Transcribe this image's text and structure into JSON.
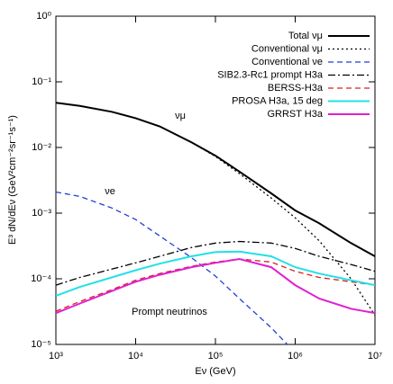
{
  "chart_data": {
    "type": "line",
    "x_label": "Eν (GeV)",
    "y_label": "E³ dN/dEν (GeV²cm⁻²sr⁻¹s⁻¹)",
    "annotations": [
      "νμ",
      "νe",
      "Prompt neutrinos"
    ],
    "log_x": true,
    "log_y": true,
    "grid": false,
    "legend": "upper right",
    "x": [
      1000,
      2000,
      5000,
      10000,
      20000,
      50000,
      100000,
      200000,
      500000,
      1000000,
      2000000,
      5000000,
      10000000
    ],
    "xlim": [
      1000,
      10000000
    ],
    "xticks": [
      {
        "value": 1000,
        "label": "10³"
      },
      {
        "value": 10000,
        "label": "10⁴"
      },
      {
        "value": 100000,
        "label": "10⁵"
      },
      {
        "value": 1000000,
        "label": "10⁶"
      },
      {
        "value": 10000000,
        "label": "10⁷"
      }
    ],
    "ylim": [
      1e-05,
      1
    ],
    "yticks": [
      {
        "value": 1e-05,
        "label": "10⁻⁵"
      },
      {
        "value": 0.0001,
        "label": "10⁻⁴"
      },
      {
        "value": 0.001,
        "label": "10⁻³"
      },
      {
        "value": 0.01,
        "label": "10⁻²"
      },
      {
        "value": 0.1,
        "label": "10⁻¹"
      },
      {
        "value": 1,
        "label": "10⁰"
      }
    ],
    "series": [
      {
        "name": "Total νμ",
        "color": "#000000",
        "linestyle": "solid",
        "linewidth": 2,
        "values": [
          0.048,
          0.043,
          0.035,
          0.028,
          0.021,
          0.012,
          0.0075,
          0.0043,
          0.002,
          0.0011,
          0.0007,
          0.00035,
          0.00022
        ]
      },
      {
        "name": "Conventional νμ",
        "color": "#000000",
        "linestyle": "dotted",
        "linewidth": 1.3,
        "values": [
          0.048,
          0.043,
          0.035,
          0.028,
          0.021,
          0.012,
          0.0073,
          0.004,
          0.0017,
          0.00085,
          0.00038,
          0.0001,
          2.8e-05
        ]
      },
      {
        "name": "Conventional νe",
        "color": "#1f3fd6",
        "linestyle": "dashed",
        "linewidth": 1.3,
        "values": [
          0.0021,
          0.0018,
          0.0012,
          0.0008,
          0.00045,
          0.00021,
          0.00011,
          5e-05,
          1.8e-05,
          7.5e-06,
          null,
          null,
          null
        ]
      },
      {
        "name": "SIB2.3-Rc1 prompt H3a",
        "color": "#000000",
        "linestyle": "dashdot",
        "linewidth": 1.3,
        "values": [
          8e-05,
          0.000105,
          0.00014,
          0.000175,
          0.00022,
          0.0003,
          0.00035,
          0.00037,
          0.00035,
          0.00029,
          0.00022,
          0.000165,
          0.00013
        ]
      },
      {
        "name": "BERSS-H3a",
        "color": "#d62020",
        "linestyle": "dashed",
        "linewidth": 1.3,
        "values": [
          3.2e-05,
          4.5e-05,
          6.8e-05,
          9.5e-05,
          0.00012,
          0.000155,
          0.00018,
          0.0002,
          0.00018,
          0.00013,
          0.000105,
          9e-05,
          8e-05
        ]
      },
      {
        "name": "PROSA H3a, 15 deg",
        "color": "#22e0e8",
        "linestyle": "solid",
        "linewidth": 2,
        "values": [
          5.5e-05,
          7.5e-05,
          0.000105,
          0.000135,
          0.00017,
          0.00022,
          0.000255,
          0.00026,
          0.00022,
          0.00015,
          0.00012,
          9.5e-05,
          8e-05
        ]
      },
      {
        "name": "GRRST H3a",
        "color": "#e020d0",
        "linestyle": "solid",
        "linewidth": 2,
        "values": [
          3e-05,
          4.2e-05,
          6.5e-05,
          9e-05,
          0.000115,
          0.00015,
          0.000175,
          0.0002,
          0.00015,
          8e-05,
          5e-05,
          3.5e-05,
          3e-05
        ]
      }
    ]
  }
}
